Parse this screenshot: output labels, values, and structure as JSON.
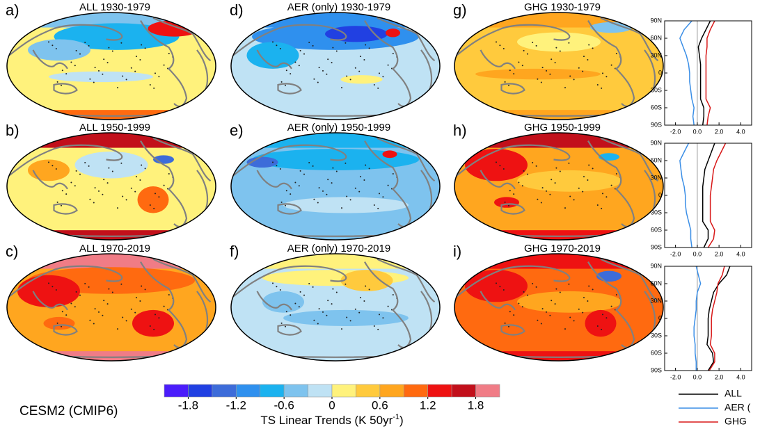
{
  "maps": [
    {
      "letter": "a)",
      "title": "ALL 1930-1979"
    },
    {
      "letter": "d)",
      "title": "AER (only) 1930-1979"
    },
    {
      "letter": "g)",
      "title": "GHG 1930-1979"
    },
    {
      "letter": "b)",
      "title": "ALL 1950-1999"
    },
    {
      "letter": "e)",
      "title": "AER (only) 1950-1999"
    },
    {
      "letter": "h)",
      "title": "GHG 1950-1999"
    },
    {
      "letter": "c)",
      "title": "ALL 1970-2019"
    },
    {
      "letter": "f)",
      "title": "AER (only) 1970-2019"
    },
    {
      "letter": "i)",
      "title": "GHG 1970-2019"
    }
  ],
  "model_label": "CESM2 (CMIP6)",
  "colorbar": {
    "title": "TS Linear Trends (K 50yr",
    "title_sup": "-1",
    "title_end": ")",
    "range": [
      -2.1,
      2.1
    ],
    "colors": [
      "#4b1dfb",
      "#2140e2",
      "#3d6cd9",
      "#2f90ee",
      "#1bb2ef",
      "#7ec3ee",
      "#bfe2f4",
      "#fff27c",
      "#ffca3d",
      "#ffa61f",
      "#ff6a10",
      "#ee1212",
      "#c2101b",
      "#f07c86"
    ],
    "ticks": [
      -1.8,
      -1.2,
      -0.6,
      0,
      0.6,
      1.2,
      1.8
    ]
  },
  "chart_data": [
    {
      "type": "line",
      "orientation": "horizontal",
      "y": [
        -90,
        -75,
        -60,
        -45,
        -30,
        -15,
        0,
        15,
        30,
        45,
        60,
        75,
        90
      ],
      "ylim": [
        -90,
        90
      ],
      "yticks": [
        {
          "value": -90,
          "label": "90S"
        },
        {
          "value": -60,
          "label": "60S"
        },
        {
          "value": -30,
          "label": "30S"
        },
        0,
        {
          "value": 30,
          "label": "30N"
        },
        {
          "value": 60,
          "label": "60N"
        },
        {
          "value": 90,
          "label": "90N"
        }
      ],
      "xlim": [
        -3,
        5
      ],
      "xticks": [
        {
          "value": -2,
          "label": "-2.0"
        },
        {
          "value": 0,
          "label": "0.0"
        },
        {
          "value": 2,
          "label": "2.0"
        },
        {
          "value": 4,
          "label": "4.0"
        }
      ],
      "series": [
        {
          "name": "ALL",
          "color": "#000000",
          "values": [
            0.5,
            0.6,
            0.6,
            0.3,
            0.3,
            0.3,
            0.3,
            0.3,
            0.2,
            0.1,
            0.4,
            0.8,
            1.2
          ]
        },
        {
          "name": "AER (",
          "color": "#3a8ee6",
          "values": [
            -0.3,
            -0.4,
            -0.3,
            -0.5,
            -0.6,
            -0.7,
            -0.7,
            -0.8,
            -1.0,
            -1.3,
            -1.6,
            -1.2,
            -0.5
          ]
        },
        {
          "name": "GHG",
          "color": "#d81818",
          "values": [
            0.9,
            1.0,
            1.2,
            0.8,
            0.8,
            0.8,
            0.8,
            0.8,
            0.8,
            0.9,
            0.9,
            1.2,
            1.6
          ]
        }
      ]
    },
    {
      "type": "line",
      "orientation": "horizontal",
      "y": [
        -90,
        -75,
        -60,
        -45,
        -30,
        -15,
        0,
        15,
        30,
        45,
        60,
        75,
        90
      ],
      "ylim": [
        -90,
        90
      ],
      "yticks": [
        {
          "value": -90,
          "label": "90S"
        },
        {
          "value": -60,
          "label": "60S"
        },
        {
          "value": -30,
          "label": "30S"
        },
        0,
        {
          "value": 30,
          "label": "30N"
        },
        {
          "value": 60,
          "label": "60N"
        },
        {
          "value": 90,
          "label": "90N"
        }
      ],
      "xlim": [
        -3,
        5
      ],
      "xticks": [
        {
          "value": -2,
          "label": "-2.0"
        },
        {
          "value": 0,
          "label": "0.0"
        },
        {
          "value": 2,
          "label": "2.0"
        },
        {
          "value": 4,
          "label": "4.0"
        }
      ],
      "series": [
        {
          "color": "#000000",
          "values": [
            0.6,
            1.0,
            1.0,
            0.5,
            0.5,
            0.5,
            0.5,
            0.5,
            0.6,
            0.7,
            1.0,
            1.3,
            1.6
          ]
        },
        {
          "color": "#3a8ee6",
          "values": [
            -0.5,
            -0.6,
            -0.6,
            -0.8,
            -1.0,
            -1.1,
            -1.1,
            -1.2,
            -1.4,
            -1.5,
            -1.6,
            -1.2,
            -0.8
          ]
        },
        {
          "color": "#d81818",
          "values": [
            1.0,
            1.5,
            1.6,
            1.2,
            1.2,
            1.2,
            1.2,
            1.3,
            1.4,
            1.5,
            1.8,
            2.2,
            2.6
          ]
        }
      ]
    },
    {
      "type": "line",
      "orientation": "horizontal",
      "y": [
        -90,
        -75,
        -60,
        -45,
        -30,
        -15,
        0,
        15,
        30,
        45,
        60,
        75,
        90
      ],
      "ylim": [
        -90,
        90
      ],
      "yticks": [
        {
          "value": -90,
          "label": "90S"
        },
        {
          "value": -60,
          "label": "60S"
        },
        {
          "value": -30,
          "label": "30S"
        },
        0,
        {
          "value": 30,
          "label": "30N"
        },
        {
          "value": 60,
          "label": "60N"
        },
        {
          "value": 90,
          "label": "90N"
        }
      ],
      "xlim": [
        -3,
        5
      ],
      "xticks": [
        {
          "value": -2,
          "label": "-2.0"
        },
        {
          "value": 0,
          "label": "0.0"
        },
        {
          "value": 2,
          "label": "2.0"
        },
        {
          "value": 4,
          "label": "4.0"
        }
      ],
      "series": [
        {
          "color": "#000000",
          "values": [
            1.0,
            1.5,
            1.4,
            0.9,
            1.0,
            1.0,
            1.0,
            1.1,
            1.3,
            1.5,
            2.0,
            2.7,
            3.0
          ]
        },
        {
          "color": "#3a8ee6",
          "values": [
            -0.1,
            -0.1,
            -0.2,
            -0.2,
            -0.3,
            -0.3,
            -0.2,
            -0.1,
            -0.1,
            0.0,
            0.3,
            0.1,
            -0.1
          ]
        },
        {
          "color": "#d81818",
          "values": [
            1.1,
            1.6,
            1.6,
            1.2,
            1.3,
            1.3,
            1.3,
            1.4,
            1.6,
            1.8,
            1.9,
            2.3,
            2.5
          ]
        }
      ]
    }
  ]
}
